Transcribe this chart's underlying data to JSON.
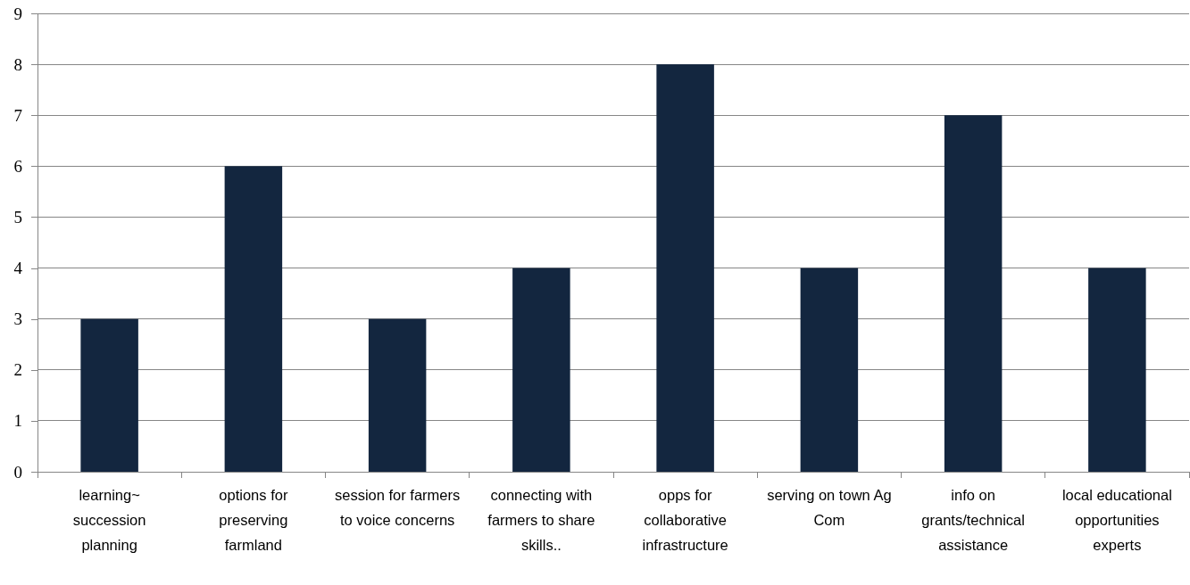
{
  "chart_data": {
    "type": "bar",
    "categories": [
      "learning~ succession planning",
      "options for preserving farmland",
      "session for farmers to voice concerns",
      "connecting with farmers to share skills..",
      "opps for collaborative infrastructure",
      "serving on town Ag Com",
      "info on grants/technical assistance",
      "local educational opportunities experts"
    ],
    "values": [
      3,
      6,
      3,
      4,
      8,
      4,
      7,
      4
    ],
    "color": "#13263f",
    "ylim": [
      0,
      9
    ],
    "yticks": [
      0,
      1,
      2,
      3,
      4,
      5,
      6,
      7,
      8,
      9
    ],
    "grid": "y"
  }
}
